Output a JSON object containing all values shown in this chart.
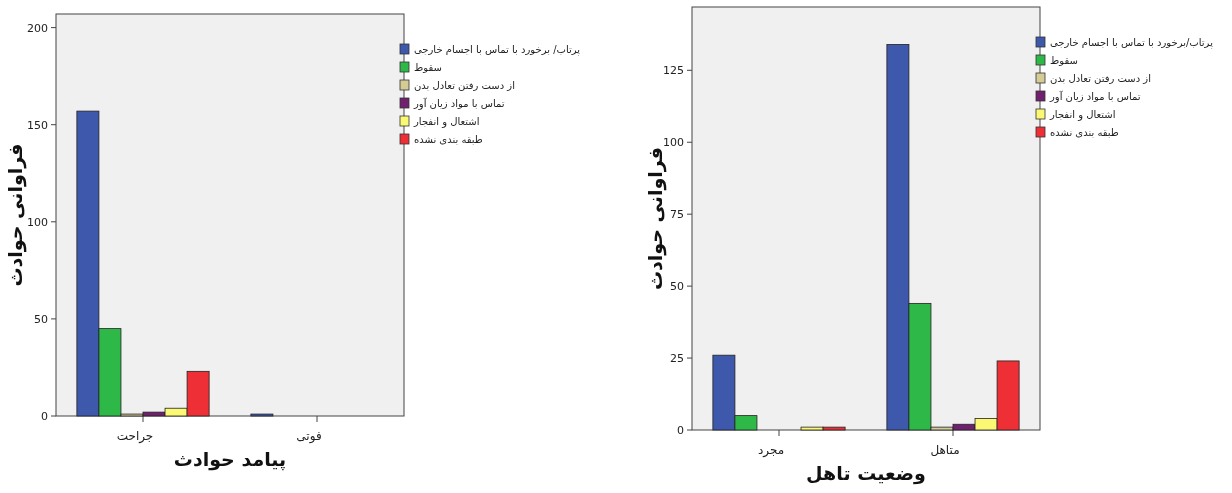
{
  "chart_data": [
    {
      "type": "bar",
      "xlabel": "پیامد حوادث",
      "ylabel": "فراوانی حوادث",
      "categories": [
        "جراحت",
        "فوتی"
      ],
      "ylim": [
        0,
        207
      ],
      "yticks": [
        0,
        50,
        100,
        150,
        200
      ],
      "grid": false,
      "legend": "top right",
      "series": [
        {
          "name": "پرتاب/ برخورد    با تماس با اجسام خارجی",
          "color": "#3e58ac",
          "values": [
            157,
            1
          ]
        },
        {
          "name": "سقوط",
          "color": "#2eb848",
          "values": [
            45,
            0
          ]
        },
        {
          "name": "از دست رفتن تعادل بدن",
          "color": "#d4cc94",
          "values": [
            1,
            0
          ]
        },
        {
          "name": "تماس با مواد زیان آور",
          "color": "#70206e",
          "values": [
            2,
            0
          ]
        },
        {
          "name": "اشتعال و انفجار",
          "color": "#fbf873",
          "values": [
            4,
            0
          ]
        },
        {
          "name": "طبقه بندی نشده",
          "color": "#ef2f36",
          "values": [
            23,
            0
          ]
        }
      ]
    },
    {
      "type": "bar",
      "xlabel": "وضعیت تاهل",
      "ylabel": "فراوانی حوادث",
      "categories": [
        "مجرد",
        "متاهل"
      ],
      "ylim": [
        0,
        147
      ],
      "yticks": [
        0,
        25,
        50,
        75,
        100,
        125
      ],
      "grid": false,
      "legend": "top right",
      "series": [
        {
          "name": "پرتاب/برخورد با تماس با اجسام خارجی",
          "color": "#3e58ac",
          "values": [
            26,
            134
          ]
        },
        {
          "name": "سقوط",
          "color": "#2eb848",
          "values": [
            5,
            44
          ]
        },
        {
          "name": "از دست رفتن تعادل بدن",
          "color": "#d4cc94",
          "values": [
            0,
            1
          ]
        },
        {
          "name": "تماس با مواد زیان آور",
          "color": "#70206e",
          "values": [
            0,
            2
          ]
        },
        {
          "name": "اشتعال و انفجار",
          "color": "#fbf873",
          "values": [
            1,
            4
          ]
        },
        {
          "name": "طبقه بندی نشده",
          "color": "#ef2f36",
          "values": [
            1,
            24
          ]
        }
      ]
    }
  ]
}
